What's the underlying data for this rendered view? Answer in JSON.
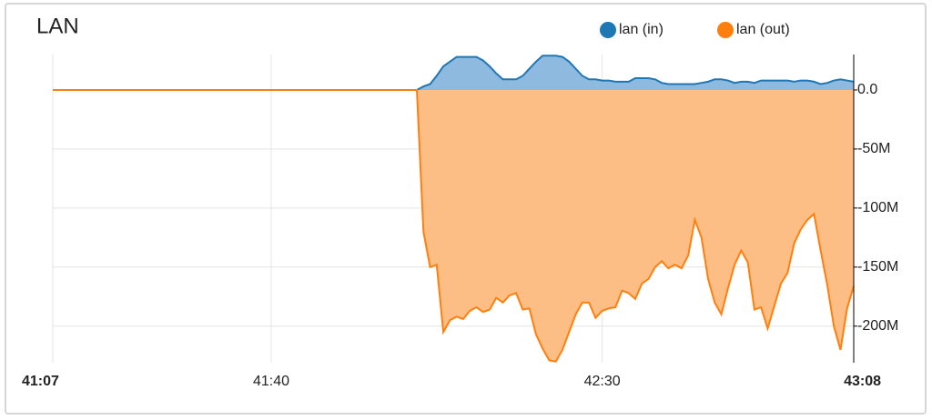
{
  "chart_data": {
    "type": "area",
    "title": "LAN",
    "x": [
      2467,
      2522,
      2523,
      2524,
      2525,
      2526,
      2527,
      2528,
      2529,
      2530,
      2531,
      2532,
      2533,
      2534,
      2535,
      2536,
      2537,
      2538,
      2539,
      2540,
      2541,
      2542,
      2543,
      2544,
      2545,
      2546,
      2547,
      2548,
      2549,
      2550,
      2551,
      2552,
      2553,
      2554,
      2555,
      2556,
      2557,
      2558,
      2559,
      2560,
      2561,
      2562,
      2563,
      2564,
      2565,
      2566,
      2567,
      2568,
      2569,
      2570,
      2571,
      2572,
      2573,
      2574,
      2575,
      2576,
      2577,
      2578,
      2579,
      2580,
      2581,
      2582,
      2583,
      2584,
      2585,
      2586,
      2587,
      2588
    ],
    "series": [
      {
        "name": "lan (in)",
        "color": "#1f77b4",
        "fill": "#8fbadf",
        "values": [
          0,
          0,
          3,
          5,
          12,
          20,
          24,
          28,
          28,
          28,
          28,
          25,
          20,
          14,
          9,
          9,
          9,
          12,
          18,
          24,
          29,
          29,
          29,
          28,
          24,
          18,
          12,
          9,
          9,
          8,
          8,
          7,
          7,
          7,
          10,
          10,
          10,
          9,
          6,
          5,
          5,
          5,
          5,
          5,
          6,
          7,
          9,
          9,
          8,
          6,
          7,
          7,
          6,
          8,
          8,
          8,
          8,
          8,
          7,
          8,
          8,
          7,
          5,
          6,
          8,
          9,
          8,
          7
        ]
      },
      {
        "name": "lan (out)",
        "color": "#ff7f0e",
        "fill": "#fdbe85",
        "values": [
          0,
          0,
          -120,
          -150,
          -148,
          -205,
          -195,
          -192,
          -194,
          -187,
          -184,
          -188,
          -186,
          -176,
          -180,
          -174,
          -172,
          -186,
          -185,
          -207,
          -219,
          -229,
          -230,
          -220,
          -205,
          -190,
          -180,
          -180,
          -193,
          -187,
          -185,
          -184,
          -170,
          -172,
          -177,
          -164,
          -160,
          -150,
          -145,
          -151,
          -148,
          -151,
          -140,
          -110,
          -125,
          -160,
          -180,
          -190,
          -168,
          -148,
          -136,
          -146,
          -186,
          -184,
          -202,
          -183,
          -164,
          -155,
          -130,
          -118,
          -110,
          -105,
          -136,
          -165,
          -200,
          -220,
          -185,
          -166
        ]
      }
    ],
    "xlim": [
      2467,
      2588
    ],
    "xticks": [
      {
        "value": 2467,
        "label": "41:07"
      },
      {
        "value": 2500,
        "label": "41:40"
      },
      {
        "value": 2550,
        "label": "42:30"
      },
      {
        "value": 2588,
        "label": "43:08"
      }
    ],
    "ylim": [
      -231,
      30
    ],
    "yticks": [
      {
        "value": 0,
        "label": "0.0"
      },
      {
        "value": -50,
        "label": "-50M"
      },
      {
        "value": -100,
        "label": "-100M"
      },
      {
        "value": -150,
        "label": "-150M"
      },
      {
        "value": -200,
        "label": "-200M"
      }
    ],
    "grid": true
  }
}
